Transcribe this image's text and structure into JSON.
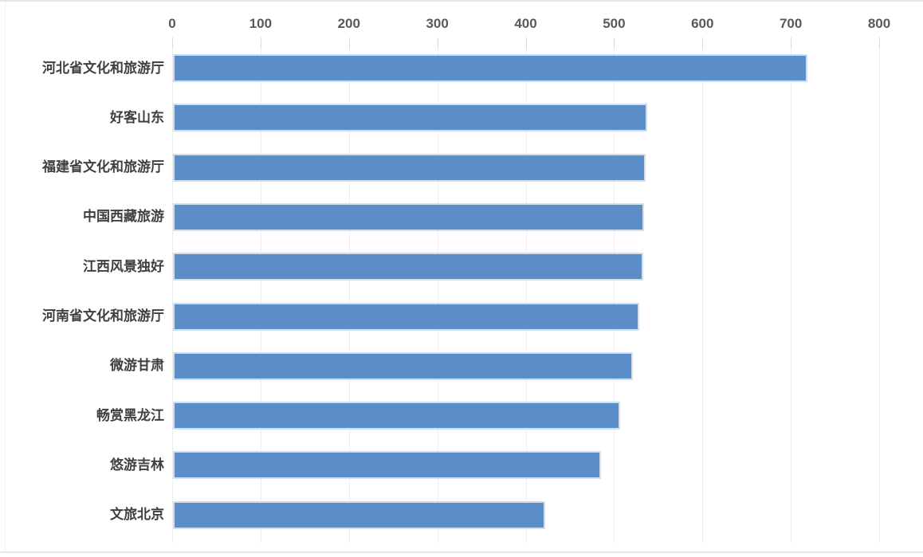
{
  "chart_data": {
    "type": "bar",
    "orientation": "horizontal",
    "title": "",
    "xlabel": "",
    "ylabel": "",
    "categories": [
      "河北省文化和旅游厅",
      "好客山东",
      "福建省文化和旅游厅",
      "中国西藏旅游",
      "江西风景独好",
      "河南省文化和旅游厅",
      "微游甘肃",
      "畅赏黑龙江",
      "悠游吉林",
      "文旅北京"
    ],
    "values": [
      718,
      537,
      535,
      533,
      532,
      528,
      520,
      506,
      484,
      421
    ],
    "x_ticks": [
      "0",
      "100",
      "200",
      "300",
      "400",
      "500",
      "600",
      "700",
      "800"
    ],
    "x_tick_values": [
      0,
      100,
      200,
      300,
      400,
      500,
      600,
      700,
      800
    ],
    "xlim": [
      0,
      800
    ],
    "grid": true,
    "legend_position": "none",
    "bar_color": "#5b8ec9",
    "bar_border_color": "#cfdff0",
    "gridline_color": "#ededed",
    "tick_color": "#d9d9d9",
    "axis_label_color": "#595959",
    "category_label_color": "#3f3f3f"
  }
}
